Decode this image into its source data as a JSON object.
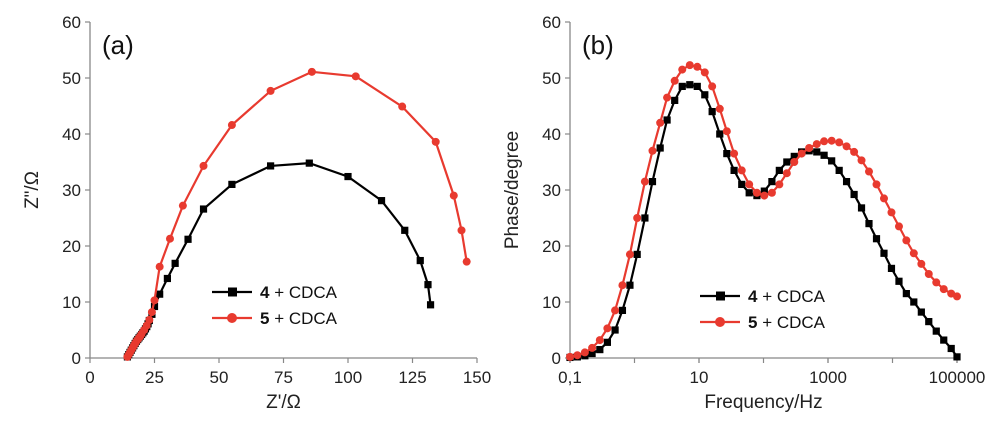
{
  "colors": {
    "series_4": "#000000",
    "series_5": "#e83a2f",
    "axis": "#888888"
  },
  "chart_data": [
    {
      "type": "scatter",
      "panel_label": "(a)",
      "xlabel": "Z'/Ω",
      "ylabel": "Z\"/Ω",
      "xlim": [
        0,
        150
      ],
      "ylim": [
        0,
        60
      ],
      "x_ticks": [
        "0",
        "25",
        "50",
        "75",
        "100",
        "125",
        "150"
      ],
      "y_ticks": [
        "0",
        "10",
        "20",
        "30",
        "40",
        "50",
        "60"
      ],
      "grid": false,
      "legend_position": "bottom-center",
      "series": [
        {
          "name_num": "4",
          "name_rest": " + CDCA",
          "marker": "square",
          "color": "#000000",
          "x": [
            14.5,
            15,
            15.5,
            16,
            16.5,
            17,
            17.5,
            18,
            18.5,
            19,
            19.5,
            20,
            20.5,
            21,
            21.5,
            22,
            22.5,
            23,
            24,
            25,
            27,
            30,
            33,
            38,
            44,
            55,
            70,
            85,
            100,
            113,
            122,
            128,
            131,
            132
          ],
          "y": [
            0.2,
            0.6,
            1.0,
            1.4,
            1.8,
            2.2,
            2.6,
            3.0,
            3.3,
            3.6,
            3.9,
            4.2,
            4.5,
            4.8,
            5.2,
            5.6,
            6.1,
            6.7,
            7.8,
            9.2,
            11.4,
            14.2,
            16.9,
            21.2,
            26.6,
            31.0,
            34.3,
            34.8,
            32.4,
            28.1,
            22.8,
            17.4,
            13.1,
            9.5
          ]
        },
        {
          "name_num": "5",
          "name_rest": " + CDCA",
          "marker": "circle",
          "color": "#e83a2f",
          "x": [
            14.5,
            15,
            15.5,
            16,
            16.5,
            17,
            17.5,
            18,
            18.5,
            19,
            19.5,
            20,
            21,
            22,
            23,
            24,
            25,
            27,
            31,
            36,
            44,
            55,
            70,
            86,
            103,
            121,
            134,
            141,
            144,
            146
          ],
          "y": [
            0.2,
            0.6,
            1.0,
            1.4,
            1.8,
            2.2,
            2.6,
            3.0,
            3.3,
            3.6,
            3.9,
            4.3,
            5.0,
            5.8,
            6.8,
            8.2,
            10.3,
            16.3,
            21.3,
            27.2,
            34.3,
            41.6,
            47.7,
            51.1,
            50.3,
            44.9,
            38.6,
            29.0,
            22.8,
            17.2
          ]
        }
      ]
    },
    {
      "type": "line",
      "panel_label": "(b)",
      "xlabel": "Frequency/Hz",
      "ylabel": "Phase/degree",
      "x_scale": "log",
      "xlim": [
        0.1,
        100000
      ],
      "ylim": [
        0,
        60
      ],
      "x_ticks": [
        "0,1",
        "10",
        "1000",
        "100000"
      ],
      "y_ticks": [
        "0",
        "10",
        "20",
        "30",
        "40",
        "50",
        "60"
      ],
      "grid": false,
      "legend_position": "bottom-center",
      "series": [
        {
          "name_num": "4",
          "name_rest": " + CDCA",
          "marker": "square",
          "color": "#000000",
          "x": [
            0.1,
            0.13,
            0.17,
            0.22,
            0.29,
            0.38,
            0.5,
            0.65,
            0.85,
            1.1,
            1.45,
            1.9,
            2.5,
            3.2,
            4.2,
            5.5,
            7.2,
            9.4,
            12.3,
            16,
            21,
            27,
            35,
            46,
            60,
            79,
            103,
            135,
            176,
            230,
            300,
            390,
            510,
            670,
            870,
            1140,
            1490,
            1940,
            2540,
            3310,
            4320,
            5650,
            7380,
            9640,
            12600,
            16400,
            21400,
            28000,
            36500,
            47700,
            62300,
            81300,
            100000
          ],
          "y": [
            0.1,
            0.2,
            0.4,
            0.8,
            1.5,
            2.8,
            5.0,
            8.5,
            13.0,
            18.5,
            25.0,
            31.5,
            37.5,
            42.5,
            46.0,
            48.5,
            48.8,
            48.5,
            47.0,
            44.0,
            40.0,
            36.5,
            33.5,
            31.0,
            29.5,
            29.0,
            29.8,
            31.5,
            33.5,
            35.0,
            36.0,
            36.8,
            37.0,
            36.8,
            36.2,
            35.2,
            33.5,
            31.5,
            29.2,
            26.8,
            24.0,
            21.3,
            18.7,
            16.0,
            13.7,
            11.5,
            10.0,
            8.2,
            6.5,
            4.8,
            3.2,
            1.7,
            0.2
          ],
          "_note_unused": ""
        },
        {
          "name_num": "5",
          "name_rest": " + CDCA",
          "marker": "circle",
          "color": "#e83a2f",
          "x": [
            0.1,
            0.13,
            0.17,
            0.22,
            0.29,
            0.38,
            0.5,
            0.65,
            0.85,
            1.1,
            1.45,
            1.9,
            2.5,
            3.2,
            4.2,
            5.5,
            7.2,
            9.4,
            12.3,
            16,
            21,
            27,
            35,
            46,
            60,
            79,
            103,
            135,
            176,
            230,
            300,
            390,
            510,
            670,
            870,
            1140,
            1490,
            1940,
            2540,
            3310,
            4320,
            5650,
            7380,
            9640,
            12600,
            16400,
            21400,
            28000,
            36500,
            47700,
            62300,
            81300,
            100000
          ],
          "y": [
            0.2,
            0.5,
            1.0,
            1.8,
            3.2,
            5.3,
            8.5,
            13.0,
            18.5,
            25.0,
            31.5,
            37.0,
            42.0,
            46.5,
            49.5,
            51.5,
            52.3,
            52.0,
            51.0,
            48.5,
            44.5,
            40.5,
            36.5,
            33.5,
            31.0,
            29.5,
            29.0,
            29.5,
            31.0,
            33.0,
            35.0,
            36.5,
            37.5,
            38.2,
            38.7,
            38.8,
            38.5,
            37.8,
            36.8,
            35.3,
            33.3,
            31.0,
            28.5,
            26.0,
            23.5,
            21.0,
            18.7,
            16.8,
            15.0,
            13.5,
            12.3,
            11.5,
            11.0
          ]
        }
      ]
    }
  ]
}
